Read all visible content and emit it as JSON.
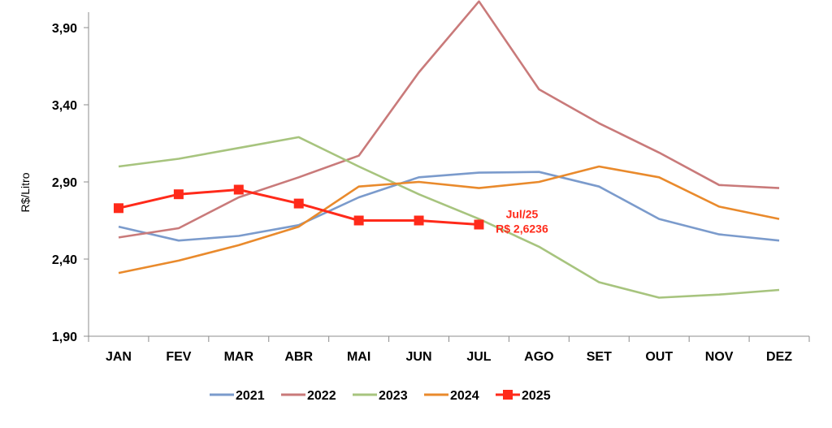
{
  "chart_data": {
    "type": "line",
    "title": "",
    "xlabel": "",
    "ylabel": "R$/Litro",
    "ylim": [
      1.9,
      4.0
    ],
    "yticks": [
      "1,90",
      "2,40",
      "2,90",
      "3,40",
      "3,90"
    ],
    "ytick_values": [
      1.9,
      2.4,
      2.9,
      3.4,
      3.9
    ],
    "categories": [
      "JAN",
      "FEV",
      "MAR",
      "ABR",
      "MAI",
      "JUN",
      "JUL",
      "AGO",
      "SET",
      "OUT",
      "NOV",
      "DEZ"
    ],
    "grid": false,
    "legend_position": "bottom",
    "series": [
      {
        "name": "2021",
        "color": "#7b9bcc",
        "marker": "none",
        "values": [
          2.61,
          2.52,
          2.55,
          2.62,
          2.8,
          2.93,
          2.96,
          2.965,
          2.87,
          2.66,
          2.56,
          2.52
        ]
      },
      {
        "name": "2022",
        "color": "#c97a7a",
        "marker": "none",
        "values": [
          2.54,
          2.6,
          2.8,
          2.93,
          3.07,
          3.61,
          4.07,
          3.5,
          3.28,
          3.09,
          2.88,
          2.86
        ]
      },
      {
        "name": "2023",
        "color": "#a7c47e",
        "marker": "none",
        "values": [
          3.0,
          3.05,
          3.12,
          3.19,
          3.0,
          2.82,
          2.66,
          2.48,
          2.25,
          2.15,
          2.17,
          2.2
        ]
      },
      {
        "name": "2024",
        "color": "#e98a2c",
        "marker": "none",
        "values": [
          2.31,
          2.39,
          2.49,
          2.61,
          2.87,
          2.9,
          2.86,
          2.9,
          3.0,
          2.93,
          2.74,
          2.66
        ]
      },
      {
        "name": "2025",
        "color": "#ff2a1a",
        "marker": "square",
        "values": [
          2.73,
          2.82,
          2.85,
          2.76,
          2.65,
          2.65,
          2.6236,
          null,
          null,
          null,
          null,
          null
        ]
      }
    ],
    "annotation": {
      "category": "JUL",
      "line1": "Jul/25",
      "line2": "R$ 2,6236",
      "color": "#ff2a1a"
    }
  }
}
